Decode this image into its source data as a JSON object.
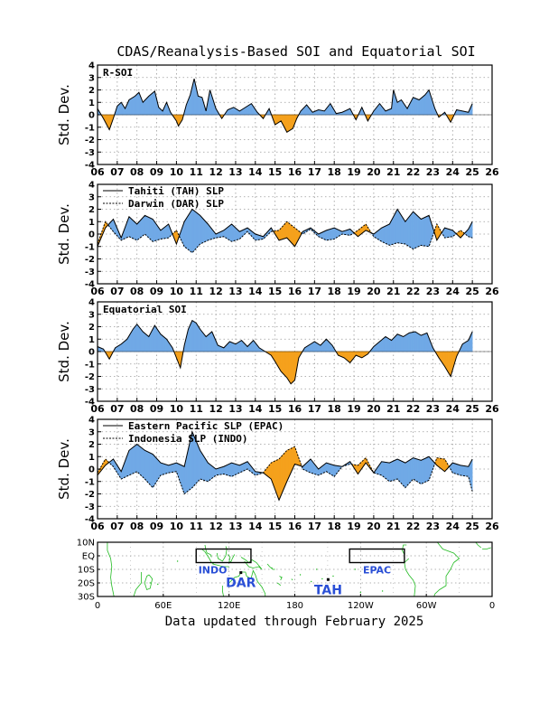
{
  "title": "CDAS/Reanalysis-Based SOI and Equatorial SOI",
  "footer": "Data updated through February 2025",
  "colors": {
    "positive": "#70a9e6",
    "negative": "#f5a11c",
    "grid": "#9a9a9a",
    "coast": "#22bb22",
    "region": "#2a4fd6"
  },
  "chart_data": [
    {
      "type": "area",
      "panel_label": "R-SOI",
      "ylabel": "Std. Dev.",
      "ylim": [
        -4,
        4
      ],
      "yticks": [
        "4",
        "3",
        "2",
        "1",
        "0",
        "-1",
        "-2",
        "-3",
        "-4"
      ],
      "xlim": [
        2006,
        2026
      ],
      "xticks": [
        "06",
        "07",
        "08",
        "09",
        "10",
        "11",
        "12",
        "13",
        "14",
        "15",
        "16",
        "17",
        "18",
        "19",
        "20",
        "21",
        "22",
        "23",
        "24",
        "25",
        "26"
      ],
      "grid": true,
      "series": [
        {
          "x": [
            2006.0,
            2006.3,
            2006.6,
            2006.8,
            2007.0,
            2007.2,
            2007.4,
            2007.6,
            2007.9,
            2008.1,
            2008.3,
            2008.6,
            2008.9,
            2009.1,
            2009.3,
            2009.5,
            2009.7,
            2010.0,
            2010.1,
            2010.3,
            2010.5,
            2010.7,
            2010.9,
            2011.1,
            2011.3,
            2011.5,
            2011.7,
            2012.0,
            2012.3,
            2012.6,
            2012.9,
            2013.2,
            2013.5,
            2013.8,
            2014.1,
            2014.4,
            2014.7,
            2015.0,
            2015.3,
            2015.6,
            2015.9,
            2016.1,
            2016.3,
            2016.6,
            2016.9,
            2017.2,
            2017.5,
            2017.8,
            2018.1,
            2018.4,
            2018.8,
            2019.1,
            2019.4,
            2019.7,
            2020.0,
            2020.3,
            2020.6,
            2020.9,
            2021.0,
            2021.2,
            2021.4,
            2021.7,
            2022.0,
            2022.3,
            2022.6,
            2022.8,
            2023.1,
            2023.3,
            2023.6,
            2023.9,
            2024.2,
            2024.5,
            2024.8,
            2025.0
          ],
          "y": [
            0.5,
            -0.3,
            -1.2,
            -0.3,
            0.7,
            1.0,
            0.5,
            1.2,
            1.5,
            1.8,
            1.0,
            1.5,
            1.9,
            0.6,
            0.3,
            1.0,
            0.2,
            -0.5,
            -0.9,
            -0.4,
            0.8,
            1.6,
            2.9,
            1.5,
            1.4,
            0.3,
            2.0,
            0.5,
            -0.3,
            0.4,
            0.6,
            0.3,
            0.6,
            0.9,
            0.2,
            -0.3,
            0.5,
            -0.8,
            -0.5,
            -1.4,
            -1.1,
            -0.3,
            0.3,
            0.8,
            0.2,
            0.4,
            0.3,
            0.9,
            0.1,
            0.2,
            0.5,
            -0.4,
            0.6,
            -0.5,
            0.3,
            0.9,
            0.3,
            0.5,
            2.0,
            1.0,
            1.2,
            0.5,
            1.4,
            1.2,
            1.6,
            2.0,
            0.5,
            -0.2,
            0.2,
            -0.6,
            0.4,
            0.3,
            0.2,
            0.9
          ]
        }
      ]
    },
    {
      "type": "area",
      "panel_label": "",
      "legend": [
        "Tahiti (TAH) SLP",
        "Darwin (DAR) SLP"
      ],
      "ylabel": "Std. Dev.",
      "ylim": [
        -4,
        4
      ],
      "yticks": [
        "4",
        "3",
        "2",
        "1",
        "0",
        "-1",
        "-2",
        "-3",
        "-4"
      ],
      "xlim": [
        2006,
        2026
      ],
      "xticks": [
        "06",
        "07",
        "08",
        "09",
        "10",
        "11",
        "12",
        "13",
        "14",
        "15",
        "16",
        "17",
        "18",
        "19",
        "20",
        "21",
        "22",
        "23",
        "24",
        "25",
        "26"
      ],
      "grid": true,
      "series": [
        {
          "name": "Tahiti (TAH) SLP",
          "x": [
            2006.0,
            2006.4,
            2006.8,
            2007.2,
            2007.6,
            2008.0,
            2008.4,
            2008.8,
            2009.2,
            2009.6,
            2010.0,
            2010.4,
            2010.8,
            2011.2,
            2011.6,
            2012.0,
            2012.4,
            2012.8,
            2013.2,
            2013.6,
            2014.0,
            2014.4,
            2014.8,
            2015.2,
            2015.6,
            2016.0,
            2016.4,
            2016.8,
            2017.2,
            2017.6,
            2018.0,
            2018.4,
            2018.8,
            2019.2,
            2019.6,
            2020.0,
            2020.4,
            2020.8,
            2021.2,
            2021.6,
            2022.0,
            2022.4,
            2022.8,
            2023.2,
            2023.6,
            2024.0,
            2024.4,
            2024.8,
            2025.0
          ],
          "y": [
            -1.0,
            0.5,
            1.2,
            -0.3,
            1.4,
            0.8,
            1.5,
            1.2,
            0.3,
            0.8,
            -0.8,
            1.0,
            2.0,
            1.5,
            0.8,
            0.0,
            0.3,
            0.8,
            0.2,
            0.5,
            0.0,
            -0.2,
            0.5,
            -0.5,
            -0.3,
            -1.0,
            0.2,
            0.5,
            0.0,
            0.3,
            0.5,
            0.2,
            0.4,
            -0.2,
            0.3,
            0.0,
            0.5,
            0.8,
            2.0,
            1.0,
            1.8,
            1.2,
            1.5,
            -0.5,
            0.5,
            0.3,
            -0.3,
            0.4,
            1.0
          ]
        },
        {
          "name": "Darwin (DAR) SLP",
          "x": [
            2006.0,
            2006.4,
            2006.8,
            2007.2,
            2007.6,
            2008.0,
            2008.4,
            2008.8,
            2009.2,
            2009.6,
            2010.0,
            2010.4,
            2010.8,
            2011.2,
            2011.6,
            2012.0,
            2012.4,
            2012.8,
            2013.2,
            2013.6,
            2014.0,
            2014.4,
            2014.8,
            2015.2,
            2015.6,
            2016.0,
            2016.4,
            2016.8,
            2017.2,
            2017.6,
            2018.0,
            2018.4,
            2018.8,
            2019.2,
            2019.6,
            2020.0,
            2020.4,
            2020.8,
            2021.2,
            2021.6,
            2022.0,
            2022.4,
            2022.8,
            2023.2,
            2023.6,
            2024.0,
            2024.4,
            2024.8,
            2025.0
          ],
          "y": [
            -0.8,
            1.0,
            0.2,
            -0.5,
            -0.2,
            -0.5,
            0.0,
            -0.6,
            -0.4,
            -0.3,
            0.3,
            -1.0,
            -1.5,
            -0.8,
            -0.5,
            -0.3,
            -0.2,
            -0.6,
            -0.4,
            0.2,
            -0.5,
            -0.4,
            0.2,
            0.3,
            1.0,
            0.5,
            0.0,
            0.4,
            -0.2,
            -0.5,
            -0.4,
            0.0,
            -0.1,
            0.3,
            0.8,
            -0.2,
            -0.6,
            -0.9,
            -0.7,
            -0.8,
            -1.2,
            -0.9,
            -1.0,
            0.8,
            -0.3,
            -0.2,
            0.3,
            -0.2,
            -0.3
          ]
        }
      ]
    },
    {
      "type": "area",
      "panel_label": "Equatorial SOI",
      "ylabel": "Std. Dev.",
      "ylim": [
        -4,
        4
      ],
      "yticks": [
        "4",
        "3",
        "2",
        "1",
        "0",
        "-1",
        "-2",
        "-3",
        "-4"
      ],
      "xlim": [
        2006,
        2026
      ],
      "xticks": [
        "06",
        "07",
        "08",
        "09",
        "10",
        "11",
        "12",
        "13",
        "14",
        "15",
        "16",
        "17",
        "18",
        "19",
        "20",
        "21",
        "22",
        "23",
        "24",
        "25",
        "26"
      ],
      "grid": true,
      "series": [
        {
          "x": [
            2006.0,
            2006.3,
            2006.6,
            2006.9,
            2007.2,
            2007.5,
            2007.8,
            2008.0,
            2008.3,
            2008.6,
            2008.9,
            2009.2,
            2009.5,
            2009.8,
            2010.0,
            2010.2,
            2010.4,
            2010.6,
            2010.8,
            2011.0,
            2011.2,
            2011.5,
            2011.8,
            2012.1,
            2012.4,
            2012.7,
            2013.0,
            2013.3,
            2013.6,
            2013.9,
            2014.2,
            2014.5,
            2014.8,
            2015.0,
            2015.3,
            2015.6,
            2015.8,
            2016.0,
            2016.2,
            2016.5,
            2016.8,
            2017.0,
            2017.3,
            2017.6,
            2017.9,
            2018.2,
            2018.5,
            2018.8,
            2019.1,
            2019.4,
            2019.7,
            2020.0,
            2020.3,
            2020.6,
            2020.9,
            2021.2,
            2021.5,
            2021.8,
            2022.1,
            2022.4,
            2022.7,
            2023.0,
            2023.3,
            2023.6,
            2023.9,
            2024.2,
            2024.5,
            2024.8,
            2025.0
          ],
          "y": [
            0.4,
            0.2,
            -0.6,
            0.3,
            0.6,
            1.0,
            1.8,
            2.2,
            1.6,
            1.2,
            2.1,
            1.4,
            1.0,
            0.3,
            -0.5,
            -1.3,
            0.5,
            1.8,
            2.5,
            2.3,
            1.8,
            1.2,
            1.6,
            0.5,
            0.3,
            0.8,
            0.6,
            0.9,
            0.4,
            0.9,
            0.3,
            0.0,
            -0.3,
            -0.8,
            -1.6,
            -2.1,
            -2.6,
            -2.3,
            -0.5,
            0.3,
            0.6,
            0.8,
            0.5,
            1.0,
            0.5,
            -0.3,
            -0.5,
            -0.9,
            -0.3,
            -0.5,
            -0.2,
            0.4,
            0.8,
            1.2,
            0.9,
            1.4,
            1.2,
            1.5,
            1.6,
            1.3,
            1.5,
            0.3,
            -0.5,
            -1.2,
            -2.0,
            -0.4,
            0.6,
            0.9,
            1.6
          ]
        }
      ]
    },
    {
      "type": "area",
      "panel_label": "",
      "legend": [
        "Eastern Pacific SLP (EPAC)",
        "Indonesia SLP (INDO)"
      ],
      "ylabel": "Std. Dev.",
      "ylim": [
        -4,
        4
      ],
      "yticks": [
        "4",
        "3",
        "2",
        "1",
        "0",
        "-1",
        "-2",
        "-3",
        "-4"
      ],
      "xlim": [
        2006,
        2026
      ],
      "xticks": [
        "06",
        "07",
        "08",
        "09",
        "10",
        "11",
        "12",
        "13",
        "14",
        "15",
        "16",
        "17",
        "18",
        "19",
        "20",
        "21",
        "22",
        "23",
        "24",
        "25",
        "26"
      ],
      "grid": true,
      "series": [
        {
          "name": "Eastern Pacific SLP (EPAC)",
          "x": [
            2006.0,
            2006.4,
            2006.8,
            2007.2,
            2007.6,
            2008.0,
            2008.4,
            2008.8,
            2009.2,
            2009.6,
            2010.0,
            2010.4,
            2010.8,
            2011.2,
            2011.6,
            2012.0,
            2012.4,
            2012.8,
            2013.2,
            2013.6,
            2014.0,
            2014.4,
            2014.8,
            2015.2,
            2015.6,
            2016.0,
            2016.4,
            2016.8,
            2017.2,
            2017.6,
            2018.0,
            2018.4,
            2018.8,
            2019.2,
            2019.6,
            2020.0,
            2020.4,
            2020.8,
            2021.2,
            2021.6,
            2022.0,
            2022.4,
            2022.8,
            2023.2,
            2023.6,
            2024.0,
            2024.4,
            2024.8,
            2025.0
          ],
          "y": [
            -0.5,
            0.3,
            0.8,
            -0.2,
            1.5,
            2.0,
            1.5,
            1.2,
            0.5,
            0.3,
            0.5,
            0.2,
            3.0,
            1.5,
            0.5,
            0.0,
            0.2,
            0.5,
            0.3,
            0.6,
            -0.2,
            -0.3,
            -0.8,
            -2.5,
            -1.0,
            0.4,
            0.2,
            0.8,
            0.0,
            0.5,
            0.3,
            0.2,
            0.6,
            -0.4,
            0.5,
            -0.3,
            0.6,
            0.5,
            0.8,
            0.5,
            0.9,
            0.7,
            1.0,
            0.3,
            -0.2,
            0.5,
            0.3,
            0.2,
            0.8
          ]
        },
        {
          "name": "Indonesia SLP (INDO)",
          "x": [
            2006.0,
            2006.4,
            2006.8,
            2007.2,
            2007.6,
            2008.0,
            2008.4,
            2008.8,
            2009.2,
            2009.6,
            2010.0,
            2010.4,
            2010.8,
            2011.2,
            2011.6,
            2012.0,
            2012.4,
            2012.8,
            2013.2,
            2013.6,
            2014.0,
            2014.4,
            2014.8,
            2015.2,
            2015.6,
            2016.0,
            2016.4,
            2016.8,
            2017.2,
            2017.6,
            2018.0,
            2018.4,
            2018.8,
            2019.2,
            2019.6,
            2020.0,
            2020.4,
            2020.8,
            2021.2,
            2021.6,
            2022.0,
            2022.4,
            2022.8,
            2023.2,
            2023.6,
            2024.0,
            2024.4,
            2024.8,
            2025.0
          ],
          "y": [
            -0.3,
            0.8,
            0.2,
            -0.8,
            -0.5,
            -0.2,
            -0.8,
            -1.5,
            -0.5,
            -0.3,
            -0.2,
            -2.0,
            -1.5,
            -0.8,
            -1.0,
            -0.5,
            -0.4,
            -0.6,
            -0.3,
            0.0,
            -0.5,
            -0.3,
            0.5,
            0.8,
            1.5,
            1.8,
            0.0,
            -0.3,
            -0.5,
            -0.2,
            -0.6,
            0.2,
            0.4,
            0.3,
            0.9,
            -0.3,
            -0.5,
            -1.0,
            -0.8,
            -1.5,
            -0.8,
            -1.2,
            -0.9,
            0.9,
            0.8,
            -0.3,
            -0.5,
            -0.6,
            -1.8
          ]
        }
      ]
    }
  ],
  "map": {
    "lat_ticks": [
      "10N",
      "EQ",
      "10S",
      "20S",
      "30S"
    ],
    "lon_ticks": [
      "0",
      "60E",
      "120E",
      "180",
      "120W",
      "60W",
      "0"
    ],
    "regions": [
      {
        "label": "INDO",
        "lon_range": [
          90,
          140
        ],
        "lat_range": [
          -5,
          5
        ]
      },
      {
        "label": "EPAC",
        "lon_range": [
          230,
          280
        ],
        "lat_range": [
          -5,
          5
        ]
      }
    ],
    "stations": [
      {
        "label": "DAR",
        "lon": 130.8,
        "lat": -12.4
      },
      {
        "label": "TAH",
        "lon": 210.4,
        "lat": -17.5
      }
    ]
  }
}
